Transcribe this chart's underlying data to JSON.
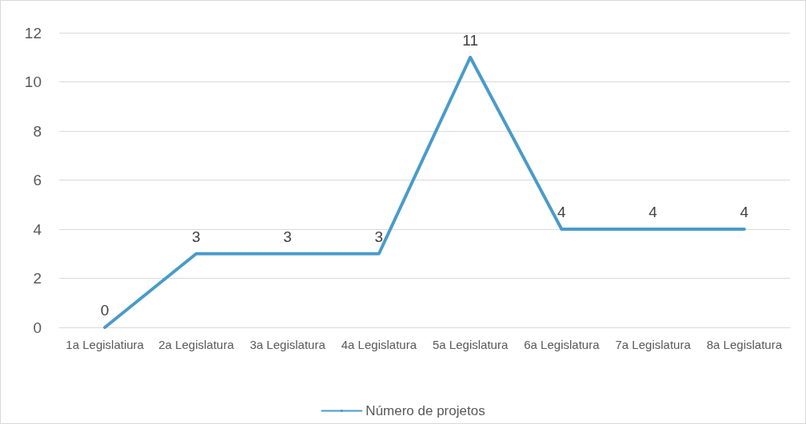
{
  "chart_data": {
    "type": "line",
    "categories": [
      "1a Legislatiura",
      "2a Legislatura",
      "3a Legislatura",
      "4a Legislatura",
      "5a Legislatura",
      "6a Legislatura",
      "7a Legislatura",
      "8a Legislatura"
    ],
    "series": [
      {
        "name": "Número de projetos",
        "color": "#4a9bc9",
        "values": [
          0,
          3,
          3,
          3,
          11,
          4,
          4,
          4
        ]
      }
    ],
    "ylim": [
      0,
      12
    ],
    "yticks": [
      0,
      2,
      4,
      6,
      8,
      10,
      12
    ],
    "grid": "y",
    "legend": "bottom",
    "data_labels": true,
    "marker": "none",
    "line_style": "solid"
  }
}
